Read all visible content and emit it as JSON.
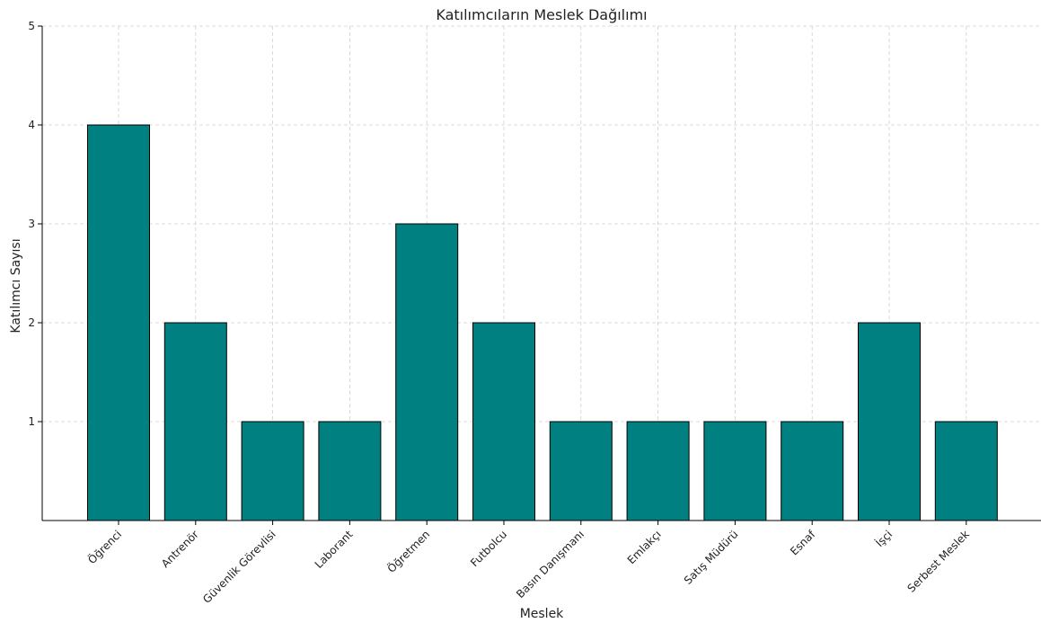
{
  "chart_data": {
    "type": "bar",
    "title": "Katılımcıların Meslek Dağılımı",
    "xlabel": "Meslek",
    "ylabel": "Katılımcı Sayısı",
    "categories": [
      "Öğrenci",
      "Antrenör",
      "Güvenlik Görevlisi",
      "Laborant",
      "Öğretmen",
      "Futbolcu",
      "Basın Danışmanı",
      "Emlakçı",
      "Satış Müdürü",
      "Esnaf",
      "İşçi",
      "Serbest Meslek"
    ],
    "values": [
      4,
      2,
      1,
      1,
      3,
      2,
      1,
      1,
      1,
      1,
      2,
      1
    ],
    "ylim": [
      0,
      5
    ],
    "yticks": [
      "1",
      "2",
      "3",
      "4",
      "5"
    ],
    "grid": true,
    "bar_color": "#008080",
    "bar_edge_color": "#000000"
  }
}
